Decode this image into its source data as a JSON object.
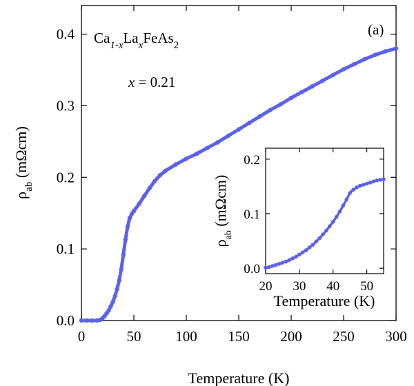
{
  "chart_data": [
    {
      "type": "scatter",
      "panel_label": "(a)",
      "xlabel": "Temperature (K)",
      "ylabel_main": "ρ",
      "ylabel_sub": "ab",
      "ylabel_unit": " (mΩcm)",
      "annotation_compound": {
        "part1": "Ca",
        "sub1": "1-x",
        "part2": "La",
        "sub2": "x",
        "part3": "FeAs",
        "sub3": "2"
      },
      "annotation_x": {
        "var": "x",
        "rest": " = 0.21"
      },
      "xlim": [
        0,
        300
      ],
      "ylim": [
        0,
        0.44
      ],
      "xticks": [
        "0",
        "50",
        "100",
        "150",
        "200",
        "250",
        "300"
      ],
      "yticks": [
        "0.0",
        "0.1",
        "0.2",
        "0.3",
        "0.4"
      ],
      "xtick_values": [
        0,
        50,
        100,
        150,
        200,
        250,
        300
      ],
      "ytick_values": [
        0,
        0.1,
        0.2,
        0.3,
        0.4
      ],
      "grid": false,
      "marker_color": "#5a63e8",
      "series": [
        {
          "points": [
            [
              0,
              0
            ],
            [
              5,
              0
            ],
            [
              10,
              0
            ],
            [
              15,
              0
            ],
            [
              18,
              0.001
            ],
            [
              20,
              0.003
            ],
            [
              22,
              0.006
            ],
            [
              24,
              0.01
            ],
            [
              26,
              0.014
            ],
            [
              28,
              0.02
            ],
            [
              30,
              0.026
            ],
            [
              32,
              0.034
            ],
            [
              34,
              0.044
            ],
            [
              36,
              0.056
            ],
            [
              38,
              0.072
            ],
            [
              40,
              0.092
            ],
            [
              42,
              0.113
            ],
            [
              44,
              0.131
            ],
            [
              46,
              0.143
            ],
            [
              48,
              0.149
            ],
            [
              50,
              0.153
            ],
            [
              55,
              0.163
            ],
            [
              60,
              0.174
            ],
            [
              65,
              0.185
            ],
            [
              70,
              0.195
            ],
            [
              75,
              0.203
            ],
            [
              80,
              0.209
            ],
            [
              90,
              0.218
            ],
            [
              100,
              0.226
            ],
            [
              110,
              0.233
            ],
            [
              120,
              0.241
            ],
            [
              130,
              0.249
            ],
            [
              140,
              0.258
            ],
            [
              150,
              0.267
            ],
            [
              160,
              0.276
            ],
            [
              170,
              0.285
            ],
            [
              180,
              0.294
            ],
            [
              190,
              0.302
            ],
            [
              200,
              0.311
            ],
            [
              210,
              0.319
            ],
            [
              220,
              0.327
            ],
            [
              230,
              0.335
            ],
            [
              240,
              0.343
            ],
            [
              250,
              0.351
            ],
            [
              260,
              0.358
            ],
            [
              270,
              0.365
            ],
            [
              280,
              0.371
            ],
            [
              290,
              0.376
            ],
            [
              300,
              0.38
            ]
          ]
        }
      ]
    },
    {
      "type": "scatter",
      "role": "inset",
      "xlabel": "Temperature (K)",
      "ylabel_main": "ρ",
      "ylabel_sub": "ab",
      "ylabel_unit": " (mΩcm)",
      "xlim": [
        20,
        55
      ],
      "ylim": [
        -0.01,
        0.22
      ],
      "xticks": [
        "20",
        "30",
        "40",
        "50"
      ],
      "yticks": [
        "0.0",
        "0.1",
        "0.2"
      ],
      "xtick_values": [
        20,
        30,
        40,
        50
      ],
      "ytick_values": [
        0,
        0.1,
        0.2
      ],
      "grid": false,
      "marker_color": "#5a63e8",
      "series": [
        {
          "points": [
            [
              20,
              0.001
            ],
            [
              21,
              0.002
            ],
            [
              22,
              0.004
            ],
            [
              23,
              0.006
            ],
            [
              24,
              0.008
            ],
            [
              25,
              0.01
            ],
            [
              26,
              0.012
            ],
            [
              27,
              0.015
            ],
            [
              28,
              0.018
            ],
            [
              29,
              0.021
            ],
            [
              30,
              0.025
            ],
            [
              31,
              0.029
            ],
            [
              32,
              0.033
            ],
            [
              33,
              0.038
            ],
            [
              34,
              0.043
            ],
            [
              35,
              0.049
            ],
            [
              36,
              0.055
            ],
            [
              37,
              0.062
            ],
            [
              38,
              0.069
            ],
            [
              39,
              0.077
            ],
            [
              40,
              0.085
            ],
            [
              41,
              0.094
            ],
            [
              42,
              0.104
            ],
            [
              43,
              0.115
            ],
            [
              44,
              0.126
            ],
            [
              45,
              0.138
            ],
            [
              46,
              0.144
            ],
            [
              47,
              0.148
            ],
            [
              48,
              0.151
            ],
            [
              49,
              0.153
            ],
            [
              50,
              0.155
            ],
            [
              51,
              0.157
            ],
            [
              52,
              0.159
            ],
            [
              53,
              0.161
            ],
            [
              54,
              0.162
            ],
            [
              55,
              0.163
            ]
          ]
        }
      ]
    }
  ]
}
